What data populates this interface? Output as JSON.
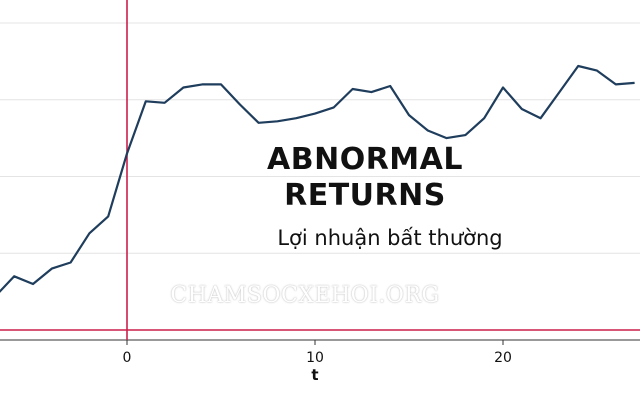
{
  "chart_data": {
    "type": "line",
    "title": "ABNORMAL RETURNS",
    "subtitle": "Lợi nhuận bất thường",
    "xlabel": "t",
    "ylabel": "",
    "x_ticks": [
      0,
      10,
      20
    ],
    "xlim": [
      -7,
      27
    ],
    "ylim": [
      -1.0,
      1.15
    ],
    "grid": true,
    "line_color": "#1f3d5c",
    "event_line_color": "#cc1f4a",
    "event_x": 0,
    "baseline_y": -1.0,
    "series": [
      {
        "x": [
          -7,
          -6,
          -5,
          -4,
          -3,
          -2,
          -1,
          0,
          1,
          2,
          3,
          4,
          5,
          6,
          7,
          8,
          9,
          10,
          11,
          12,
          13,
          14,
          15,
          16,
          17,
          18,
          19,
          20,
          21,
          22,
          23,
          24,
          25,
          26,
          27
        ],
        "y": [
          -0.78,
          -0.65,
          -0.7,
          -0.6,
          -0.56,
          -0.37,
          -0.26,
          0.15,
          0.49,
          0.48,
          0.58,
          0.6,
          0.6,
          0.47,
          0.35,
          0.36,
          0.38,
          0.41,
          0.45,
          0.57,
          0.55,
          0.59,
          0.4,
          0.3,
          0.25,
          0.27,
          0.38,
          0.58,
          0.44,
          0.38,
          0.55,
          0.72,
          0.69,
          0.6,
          0.61
        ]
      }
    ]
  },
  "watermark": "CHAMSOCXEHOI.ORG"
}
